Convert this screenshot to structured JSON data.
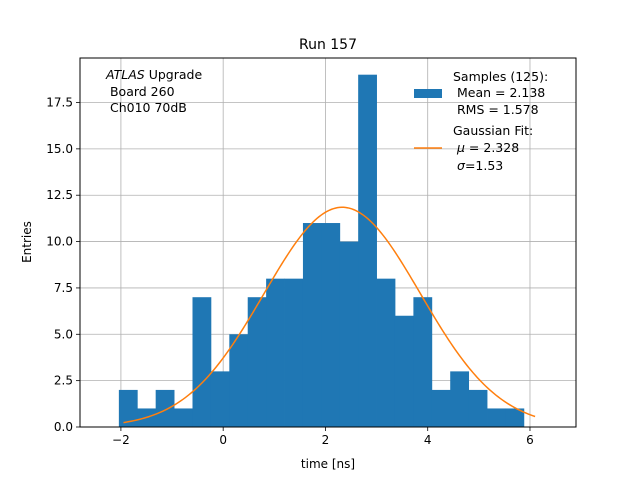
{
  "chart_data": {
    "type": "bar",
    "title": "Run 157",
    "xlabel": "time [ns]",
    "ylabel": "Entries",
    "xlim": [
      -2.8,
      6.9
    ],
    "ylim": [
      0,
      19.9
    ],
    "grid": true,
    "x_ticks": [
      -2,
      0,
      2,
      4,
      6
    ],
    "x_tick_labels": [
      "−2",
      "0",
      "2",
      "4",
      "6"
    ],
    "y_ticks": [
      0,
      2.5,
      5,
      7.5,
      10,
      12.5,
      15,
      17.5
    ],
    "y_tick_labels": [
      "0.0",
      "2.5",
      "5.0",
      "7.5",
      "10.0",
      "12.5",
      "15.0",
      "17.5"
    ],
    "annotation": {
      "italic": "ATLAS",
      "line1_rest": " Upgrade",
      "line2": " Board 260",
      "line3": " Ch010 70dB"
    },
    "histogram": {
      "name": "Samples (125)",
      "color": "#1f77b4",
      "bin_width": 0.36,
      "bin_edges_start": -2.04,
      "counts": [
        2,
        1,
        2,
        1,
        7,
        3,
        5,
        7,
        8,
        8,
        11,
        11,
        10,
        19,
        8,
        6,
        7,
        2,
        3,
        2,
        1,
        1
      ]
    },
    "gaussian_fit": {
      "name": "Gaussian Fit",
      "color": "#ff7f0e",
      "mu": 2.328,
      "sigma": 1.53,
      "amplitude": 11.85,
      "x_range": [
        -1.95,
        6.1
      ]
    },
    "legend": {
      "position": "top-right",
      "samples": {
        "title": "Samples (125):",
        "mean": " Mean = 2.138",
        "rms": " RMS = 1.578"
      },
      "fit": {
        "title": "Gaussian Fit:",
        "mu_symbol": "μ",
        "mu_rest": " = 2.328",
        "sigma_symbol": "σ",
        "sigma_rest": "=1.53"
      }
    }
  }
}
